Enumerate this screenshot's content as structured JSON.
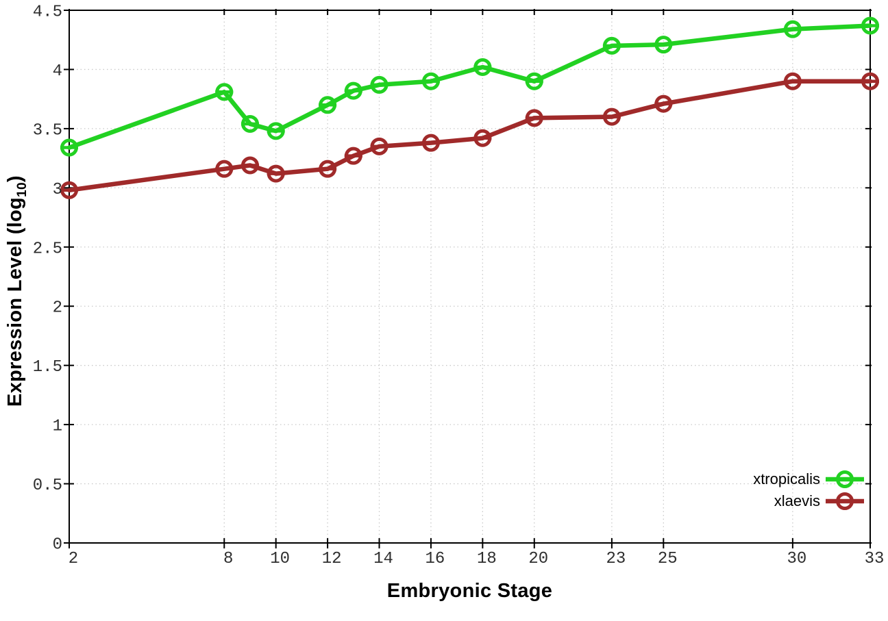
{
  "chart_data": {
    "type": "line",
    "title": "",
    "xlabel": "Embryonic Stage",
    "ylabel": "Expression Level (log10)",
    "ylabel_parts": {
      "main": "Expression Level (log",
      "sub": "10",
      "close": ")"
    },
    "x": [
      2,
      8,
      9,
      10,
      12,
      13,
      14,
      16,
      18,
      20,
      23,
      25,
      30,
      33
    ],
    "series": [
      {
        "name": "xtropicalis",
        "color": "#22d122",
        "values": [
          3.34,
          3.81,
          3.54,
          3.48,
          3.7,
          3.82,
          3.87,
          3.9,
          4.02,
          3.9,
          4.2,
          4.21,
          4.34,
          4.37
        ]
      },
      {
        "name": "xlaevis",
        "color": "#a02a2a",
        "values": [
          2.98,
          3.16,
          3.19,
          3.12,
          3.16,
          3.27,
          3.35,
          3.38,
          3.42,
          3.59,
          3.6,
          3.71,
          3.9,
          3.9
        ]
      }
    ],
    "xlim": [
      2,
      33
    ],
    "ylim": [
      0,
      4.5
    ],
    "xticks": [
      2,
      8,
      10,
      12,
      14,
      16,
      18,
      20,
      23,
      25,
      30,
      33
    ],
    "xtick_labels": [
      "2",
      "8",
      "10",
      "12",
      "14",
      "16",
      "18",
      "20",
      "23",
      "25",
      "30",
      "33"
    ],
    "yticks": [
      0,
      0.5,
      1,
      1.5,
      2,
      2.5,
      3,
      3.5,
      4,
      4.5
    ],
    "ytick_labels": [
      "0",
      "0.5",
      "1",
      "1.5",
      "2",
      "2.5",
      "3",
      "3.5",
      "4",
      "4.5"
    ],
    "grid": true,
    "legend_position": "bottom-right",
    "marker": "open-circle-with-horizontal-bar",
    "colors": {
      "grid": "#c9c9c9",
      "axis": "#000000",
      "tick_text": "#2e2e2e"
    }
  }
}
